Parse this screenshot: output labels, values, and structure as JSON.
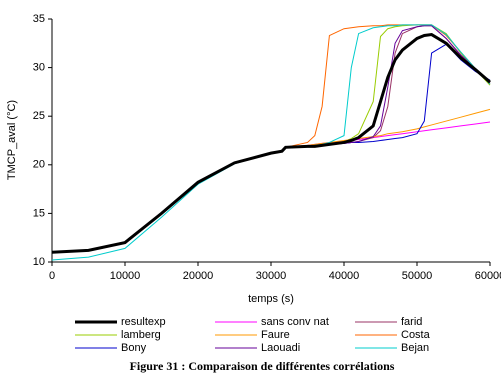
{
  "chart_data": {
    "type": "line",
    "caption": "Figure 31 : Comparaison de différentes corrélations",
    "x_label": "temps (s)",
    "y_label": "TMCP_aval (°C)",
    "x": [
      0,
      5000,
      10000,
      15000,
      20000,
      25000,
      30000,
      31500,
      32000,
      35000,
      36000,
      37000,
      38000,
      40000,
      41000,
      42000,
      44000,
      45000,
      46000,
      47000,
      48000,
      50000,
      51000,
      52000,
      54000,
      56000,
      58000,
      60000
    ],
    "xlim": [
      0,
      60000
    ],
    "xticks": [
      0,
      10000,
      20000,
      30000,
      40000,
      50000,
      60000
    ],
    "ylim": [
      10,
      35
    ],
    "yticks": [
      10,
      15,
      20,
      25,
      30,
      35
    ],
    "series": [
      {
        "name": "resultexp",
        "color": "#000000",
        "width": 3,
        "values": [
          11.0,
          11.2,
          12.0,
          15.0,
          18.2,
          20.2,
          21.2,
          21.4,
          21.8,
          21.9,
          21.9,
          22.0,
          22.1,
          22.3,
          22.5,
          22.8,
          24.0,
          26.5,
          29.0,
          30.8,
          31.8,
          33.0,
          33.3,
          33.4,
          32.5,
          31.0,
          29.8,
          28.5
        ]
      },
      {
        "name": "sans conv nat",
        "color": "#ff00ff",
        "width": 1,
        "values": [
          11.0,
          11.2,
          12.0,
          15.0,
          18.2,
          20.2,
          21.2,
          21.4,
          21.8,
          22.0,
          22.1,
          22.2,
          22.3,
          22.4,
          22.5,
          22.6,
          22.8,
          22.9,
          23.0,
          23.1,
          23.2,
          23.4,
          23.5,
          23.6,
          23.8,
          24.0,
          24.2,
          24.4
        ]
      },
      {
        "name": "farid",
        "color": "#993366",
        "width": 1,
        "values": [
          11.0,
          11.2,
          12.0,
          15.0,
          18.2,
          20.2,
          21.2,
          21.4,
          21.8,
          21.9,
          22.0,
          22.0,
          22.1,
          22.2,
          22.3,
          22.4,
          22.8,
          23.5,
          26.0,
          31.5,
          33.5,
          34.2,
          34.3,
          34.3,
          33.0,
          31.2,
          29.8,
          28.4
        ]
      },
      {
        "name": "lamberg",
        "color": "#99cc00",
        "width": 1,
        "values": [
          11.0,
          11.2,
          12.0,
          15.0,
          18.2,
          20.2,
          21.2,
          21.4,
          21.8,
          21.9,
          22.0,
          22.0,
          22.1,
          22.4,
          22.7,
          23.2,
          26.5,
          33.2,
          34.0,
          34.2,
          34.3,
          34.4,
          34.4,
          34.4,
          33.5,
          31.5,
          29.8,
          28.2
        ]
      },
      {
        "name": "Faure",
        "color": "#ff9900",
        "width": 1,
        "values": [
          11.0,
          11.2,
          12.0,
          15.0,
          18.2,
          20.2,
          21.2,
          21.4,
          21.8,
          22.0,
          22.1,
          22.2,
          22.3,
          22.5,
          22.6,
          22.7,
          22.9,
          23.0,
          23.2,
          23.3,
          23.4,
          23.7,
          23.9,
          24.1,
          24.5,
          24.9,
          25.3,
          25.7
        ]
      },
      {
        "name": "Costa",
        "color": "#ff6600",
        "width": 1,
        "values": [
          11.0,
          11.2,
          12.0,
          15.0,
          18.2,
          20.2,
          21.2,
          21.4,
          21.8,
          22.3,
          23.0,
          26.0,
          33.3,
          34.0,
          34.1,
          34.2,
          34.3,
          34.3,
          34.4,
          34.4,
          34.4,
          34.4,
          34.4,
          34.4,
          33.3,
          31.6,
          29.9,
          28.3
        ]
      },
      {
        "name": "Bony",
        "color": "#0000cc",
        "width": 1,
        "values": [
          11.0,
          11.2,
          12.0,
          15.0,
          18.2,
          20.2,
          21.2,
          21.4,
          21.8,
          21.9,
          22.0,
          22.0,
          22.1,
          22.2,
          22.3,
          22.3,
          22.4,
          22.5,
          22.6,
          22.7,
          22.8,
          23.2,
          24.5,
          31.5,
          32.4,
          30.8,
          29.6,
          28.7
        ]
      },
      {
        "name": "Laouadi",
        "color": "#660099",
        "width": 1,
        "values": [
          11.0,
          11.2,
          12.0,
          15.0,
          18.2,
          20.2,
          21.2,
          21.4,
          21.8,
          21.9,
          22.0,
          22.0,
          22.1,
          22.2,
          22.3,
          22.4,
          22.9,
          24.0,
          28.0,
          32.5,
          33.8,
          34.2,
          34.3,
          34.3,
          33.0,
          31.3,
          29.9,
          28.6
        ]
      },
      {
        "name": "Bejan",
        "color": "#00cccc",
        "width": 1,
        "values": [
          10.2,
          10.5,
          11.4,
          14.6,
          18.0,
          20.1,
          21.2,
          21.4,
          21.8,
          21.9,
          22.0,
          22.1,
          22.3,
          23.0,
          30.0,
          33.5,
          34.1,
          34.2,
          34.3,
          34.3,
          34.4,
          34.4,
          34.4,
          34.4,
          33.4,
          31.6,
          29.9,
          28.3
        ]
      }
    ]
  }
}
